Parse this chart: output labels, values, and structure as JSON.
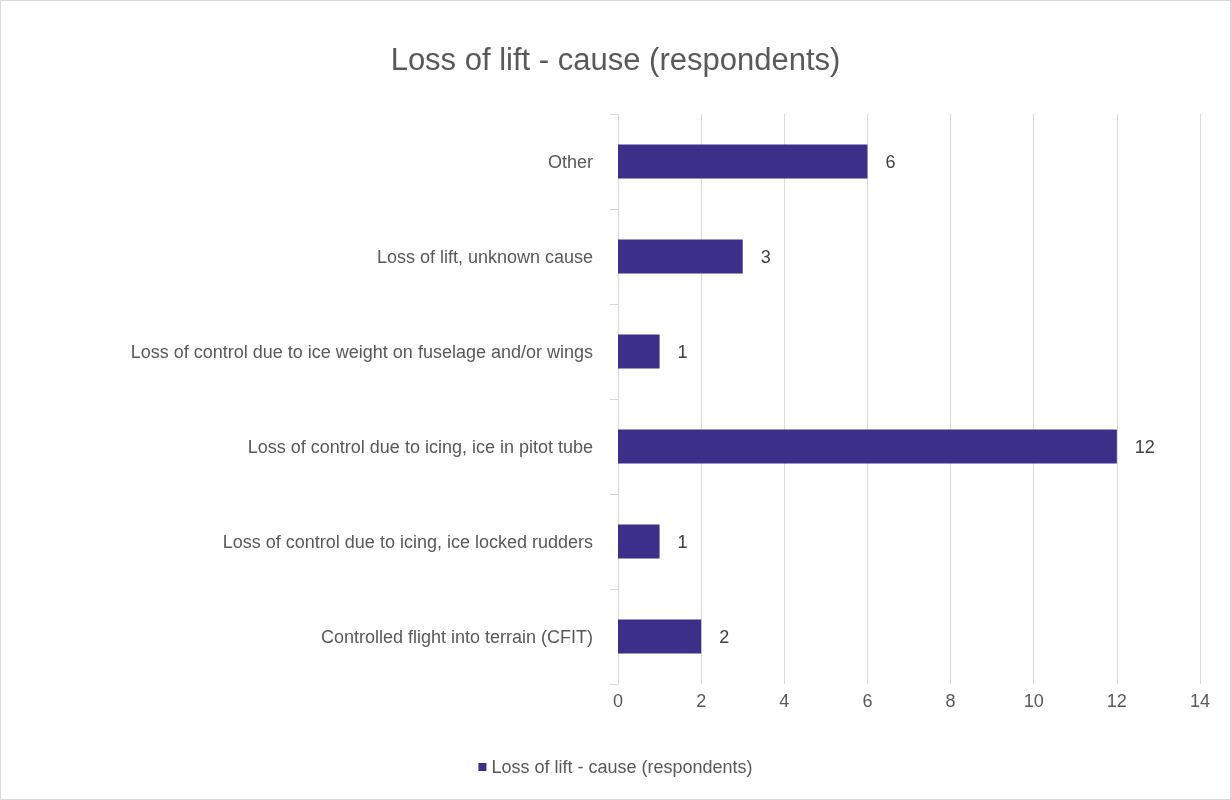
{
  "chart_data": {
    "type": "bar",
    "orientation": "horizontal",
    "title": "Loss of lift - cause (respondents)",
    "categories": [
      "Other",
      "Loss of lift, unknown cause",
      "Loss of control due to ice weight on fuselage and/or wings",
      "Loss of control due to icing, ice in pitot tube",
      "Loss of control due to icing, ice locked rudders",
      "Controlled flight into terrain (CFIT)"
    ],
    "series": [
      {
        "name": "Loss of lift - cause (respondents)",
        "color": "#3b2f8a",
        "values": [
          6,
          3,
          1,
          12,
          1,
          2
        ]
      }
    ],
    "xlim": [
      0,
      14
    ],
    "xticks": [
      0,
      2,
      4,
      6,
      8,
      10,
      12,
      14
    ],
    "grid": "x",
    "legend": "bottom",
    "data_labels": true
  }
}
